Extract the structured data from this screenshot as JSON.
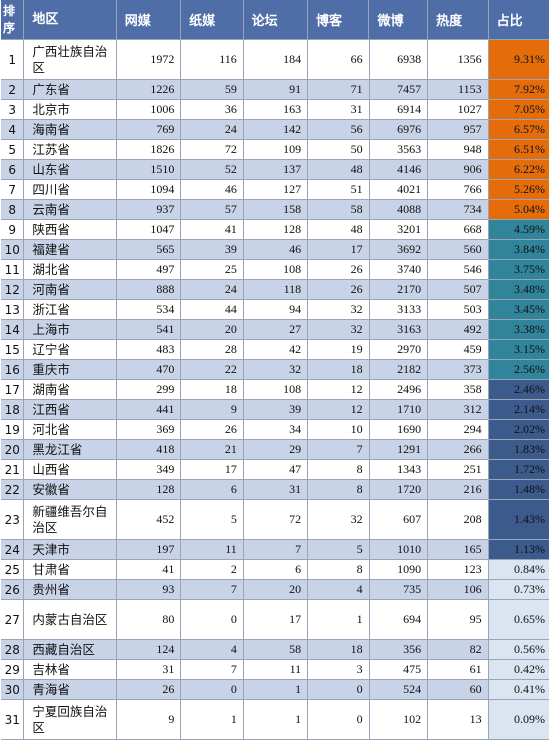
{
  "headers": [
    "排序",
    "地区",
    "网媒",
    "纸媒",
    "论坛",
    "博客",
    "微博",
    "热度",
    "占比"
  ],
  "colors": {
    "header_bg": "#4f6ea8",
    "row_alt": "#c9d3e8",
    "share_orange": "#e46c0a",
    "share_teal": "#31859b",
    "share_blue": "#3c5a8c",
    "share_light": "#dbe5f1"
  },
  "rows": [
    {
      "rank": "1",
      "region": "广西壮族自治区",
      "web": "1972",
      "paper": "116",
      "forum": "184",
      "blog": "66",
      "weibo": "6938",
      "heat": "1356",
      "share": "9.31%",
      "band": "share_orange",
      "h": 40
    },
    {
      "rank": "2",
      "region": "广东省",
      "web": "1226",
      "paper": "59",
      "forum": "91",
      "blog": "71",
      "weibo": "7457",
      "heat": "1153",
      "share": "7.92%",
      "band": "share_orange",
      "h": 20
    },
    {
      "rank": "3",
      "region": "北京市",
      "web": "1006",
      "paper": "36",
      "forum": "163",
      "blog": "31",
      "weibo": "6914",
      "heat": "1027",
      "share": "7.05%",
      "band": "share_orange",
      "h": 20
    },
    {
      "rank": "4",
      "region": "海南省",
      "web": "769",
      "paper": "24",
      "forum": "142",
      "blog": "56",
      "weibo": "6976",
      "heat": "957",
      "share": "6.57%",
      "band": "share_orange",
      "h": 20
    },
    {
      "rank": "5",
      "region": "江苏省",
      "web": "1826",
      "paper": "72",
      "forum": "109",
      "blog": "50",
      "weibo": "3563",
      "heat": "948",
      "share": "6.51%",
      "band": "share_orange",
      "h": 20
    },
    {
      "rank": "6",
      "region": "山东省",
      "web": "1510",
      "paper": "52",
      "forum": "137",
      "blog": "48",
      "weibo": "4146",
      "heat": "906",
      "share": "6.22%",
      "band": "share_orange",
      "h": 20
    },
    {
      "rank": "7",
      "region": "四川省",
      "web": "1094",
      "paper": "46",
      "forum": "127",
      "blog": "51",
      "weibo": "4021",
      "heat": "766",
      "share": "5.26%",
      "band": "share_orange",
      "h": 20
    },
    {
      "rank": "8",
      "region": "云南省",
      "web": "937",
      "paper": "57",
      "forum": "158",
      "blog": "58",
      "weibo": "4088",
      "heat": "734",
      "share": "5.04%",
      "band": "share_orange",
      "h": 20
    },
    {
      "rank": "9",
      "region": "陕西省",
      "web": "1047",
      "paper": "41",
      "forum": "128",
      "blog": "48",
      "weibo": "3201",
      "heat": "668",
      "share": "4.59%",
      "band": "share_teal",
      "h": 20
    },
    {
      "rank": "10",
      "region": "福建省",
      "web": "565",
      "paper": "39",
      "forum": "46",
      "blog": "17",
      "weibo": "3692",
      "heat": "560",
      "share": "3.84%",
      "band": "share_teal",
      "h": 20
    },
    {
      "rank": "11",
      "region": "湖北省",
      "web": "497",
      "paper": "25",
      "forum": "108",
      "blog": "26",
      "weibo": "3740",
      "heat": "546",
      "share": "3.75%",
      "band": "share_teal",
      "h": 20
    },
    {
      "rank": "12",
      "region": "河南省",
      "web": "888",
      "paper": "24",
      "forum": "118",
      "blog": "26",
      "weibo": "2170",
      "heat": "507",
      "share": "3.48%",
      "band": "share_teal",
      "h": 20
    },
    {
      "rank": "13",
      "region": "浙江省",
      "web": "534",
      "paper": "44",
      "forum": "94",
      "blog": "32",
      "weibo": "3133",
      "heat": "503",
      "share": "3.45%",
      "band": "share_teal",
      "h": 20
    },
    {
      "rank": "14",
      "region": "上海市",
      "web": "541",
      "paper": "20",
      "forum": "27",
      "blog": "32",
      "weibo": "3163",
      "heat": "492",
      "share": "3.38%",
      "band": "share_teal",
      "h": 20
    },
    {
      "rank": "15",
      "region": "辽宁省",
      "web": "483",
      "paper": "28",
      "forum": "42",
      "blog": "19",
      "weibo": "2970",
      "heat": "459",
      "share": "3.15%",
      "band": "share_teal",
      "h": 20
    },
    {
      "rank": "16",
      "region": "重庆市",
      "web": "470",
      "paper": "22",
      "forum": "32",
      "blog": "18",
      "weibo": "2182",
      "heat": "373",
      "share": "2.56%",
      "band": "share_teal",
      "h": 20
    },
    {
      "rank": "17",
      "region": "湖南省",
      "web": "299",
      "paper": "18",
      "forum": "108",
      "blog": "12",
      "weibo": "2496",
      "heat": "358",
      "share": "2.46%",
      "band": "share_blue",
      "h": 20
    },
    {
      "rank": "18",
      "region": "江西省",
      "web": "441",
      "paper": "9",
      "forum": "39",
      "blog": "12",
      "weibo": "1710",
      "heat": "312",
      "share": "2.14%",
      "band": "share_blue",
      "h": 20
    },
    {
      "rank": "19",
      "region": "河北省",
      "web": "369",
      "paper": "26",
      "forum": "34",
      "blog": "10",
      "weibo": "1690",
      "heat": "294",
      "share": "2.02%",
      "band": "share_blue",
      "h": 20
    },
    {
      "rank": "20",
      "region": "黑龙江省",
      "web": "418",
      "paper": "21",
      "forum": "29",
      "blog": "7",
      "weibo": "1291",
      "heat": "266",
      "share": "1.83%",
      "band": "share_blue",
      "h": 20
    },
    {
      "rank": "21",
      "region": "山西省",
      "web": "349",
      "paper": "17",
      "forum": "47",
      "blog": "8",
      "weibo": "1343",
      "heat": "251",
      "share": "1.72%",
      "band": "share_blue",
      "h": 20
    },
    {
      "rank": "22",
      "region": "安徽省",
      "web": "128",
      "paper": "6",
      "forum": "31",
      "blog": "8",
      "weibo": "1720",
      "heat": "216",
      "share": "1.48%",
      "band": "share_blue",
      "h": 20
    },
    {
      "rank": "23",
      "region": "新疆维吾尔自治区",
      "web": "452",
      "paper": "5",
      "forum": "72",
      "blog": "32",
      "weibo": "607",
      "heat": "208",
      "share": "1.43%",
      "band": "share_blue",
      "h": 40
    },
    {
      "rank": "24",
      "region": "天津市",
      "web": "197",
      "paper": "11",
      "forum": "7",
      "blog": "5",
      "weibo": "1010",
      "heat": "165",
      "share": "1.13%",
      "band": "share_blue",
      "h": 20
    },
    {
      "rank": "25",
      "region": "甘肃省",
      "web": "41",
      "paper": "2",
      "forum": "6",
      "blog": "8",
      "weibo": "1090",
      "heat": "123",
      "share": "0.84%",
      "band": "share_light",
      "h": 20
    },
    {
      "rank": "26",
      "region": "贵州省",
      "web": "93",
      "paper": "7",
      "forum": "20",
      "blog": "4",
      "weibo": "735",
      "heat": "106",
      "share": "0.73%",
      "band": "share_light",
      "h": 20
    },
    {
      "rank": "27",
      "region": "内蒙古自治区",
      "web": "80",
      "paper": "0",
      "forum": "17",
      "blog": "1",
      "weibo": "694",
      "heat": "95",
      "share": "0.65%",
      "band": "share_light",
      "h": 40
    },
    {
      "rank": "28",
      "region": "西藏自治区",
      "web": "124",
      "paper": "4",
      "forum": "58",
      "blog": "18",
      "weibo": "356",
      "heat": "82",
      "share": "0.56%",
      "band": "share_light",
      "h": 20
    },
    {
      "rank": "29",
      "region": "吉林省",
      "web": "31",
      "paper": "7",
      "forum": "11",
      "blog": "3",
      "weibo": "475",
      "heat": "61",
      "share": "0.42%",
      "band": "share_light",
      "h": 20
    },
    {
      "rank": "30",
      "region": "青海省",
      "web": "26",
      "paper": "0",
      "forum": "1",
      "blog": "0",
      "weibo": "524",
      "heat": "60",
      "share": "0.41%",
      "band": "share_light",
      "h": 20
    },
    {
      "rank": "31",
      "region": "宁夏回族自治区",
      "web": "9",
      "paper": "1",
      "forum": "1",
      "blog": "0",
      "weibo": "102",
      "heat": "13",
      "share": "0.09%",
      "band": "share_light",
      "h": 40
    }
  ]
}
